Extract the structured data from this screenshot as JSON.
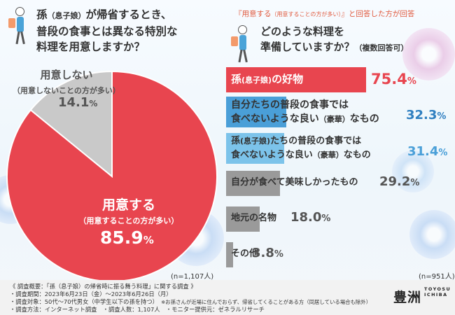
{
  "left": {
    "question_line1_a": "孫",
    "question_line1_b": "（息子娘）",
    "question_line1_c": "が帰省するとき、",
    "question_line2": "普段の食事とは異なる特別な",
    "question_line3": "料理を用意しますか？",
    "no_label": "用意しない",
    "no_sub": "（用意しないことの方が多い）",
    "no_value": "14.1",
    "yes_label": "用意する",
    "yes_sub": "（用意することの方が多い）",
    "yes_value": "85.9",
    "percent_sign": "%",
    "n": "(n=1,107人)",
    "colors": {
      "yes": "#e8454f",
      "no": "#c9c9c9"
    }
  },
  "right": {
    "note_a": "『用意する",
    "note_b": "（用意することの方が多い）",
    "note_c": "』と回答した方が回答",
    "question_line1": "どのような料理を",
    "question_line2a": "準備していますか？",
    "question_line2b": "（複数回答可）",
    "n": "(n=951人)"
  },
  "bars": [
    {
      "line1a": "孫",
      "line1b": "(息子娘)",
      "line1c": "の好物",
      "line2a": "",
      "line2b": "",
      "line2c": "",
      "value": "75.4"
    },
    {
      "line1a": "自分たちの普段の食事では",
      "line1b": "",
      "line1c": "",
      "line2a": "食べないような良い",
      "line2b": "（豪華）",
      "line2c": "なもの",
      "value": "32.3"
    },
    {
      "line1a": "孫",
      "line1b": "(息子娘)",
      "line1c": "たちの普段の食事では",
      "line2a": "食べないような良い",
      "line2b": "（豪華）",
      "line2c": "なもの",
      "value": "31.4"
    },
    {
      "line1a": "自分が食べて美味しかったもの",
      "line1b": "",
      "line1c": "",
      "line2a": "",
      "line2b": "",
      "line2c": "",
      "value": "29.2"
    },
    {
      "line1a": "地元の名物",
      "line1b": "",
      "line1c": "",
      "line2a": "",
      "line2b": "",
      "line2c": "",
      "value": "18.0"
    },
    {
      "line1a": "その他",
      "line1b": "",
      "line1c": "",
      "line2a": "",
      "line2b": "",
      "line2c": "",
      "value": "3.8"
    }
  ],
  "bar_colors": [
    "#e8454f",
    "#4a9fd8",
    "#7cc3ea",
    "#9a9a9a",
    "#9a9a9a",
    "#9a9a9a"
  ],
  "footer": {
    "line1": "《 調査概要：「孫（息子娘）の帰省時に振る舞う料理」に関する調査 》",
    "line2": "・調査期間：2023年6月23日（金）〜2023年6月26日（月）",
    "line3a": "・調査対象：50代〜70代男女（中学生以下の孫を持つ）",
    "line3b": "※お孫さんが近場に住んでおらず、帰省してくることがある方（同居している場合も除外）",
    "line4": "・調査方法：インターネット調査　・調査人数：1,107人　・モニター提供元：ゼネラルリサーチ",
    "logo_kanji": "豊洲",
    "logo_roman_1": "TOYOSU",
    "logo_roman_2": "ICHIBA"
  },
  "chart_data": [
    {
      "type": "pie",
      "title": "孫（息子娘）が帰省するとき、普段の食事とは異なる特別な料理を用意しますか？",
      "categories": [
        "用意する（用意することの方が多い）",
        "用意しない（用意しないことの方が多い）"
      ],
      "values": [
        85.9,
        14.1
      ],
      "unit": "%",
      "n": "n=1,107人",
      "colors": [
        "#e8454f",
        "#c9c9c9"
      ]
    },
    {
      "type": "bar",
      "orientation": "horizontal",
      "title": "どのような料理を準備していますか？（複数回答可）",
      "categories": [
        "孫(息子娘)の好物",
        "自分たちの普段の食事では食べないような良い（豪華）なもの",
        "孫(息子娘)たちの普段の食事では食べないような良い（豪華）なもの",
        "自分が食べて美味しかったもの",
        "地元の名物",
        "その他"
      ],
      "values": [
        75.4,
        32.3,
        31.4,
        29.2,
        18.0,
        3.8
      ],
      "unit": "%",
      "n": "n=951人",
      "colors": [
        "#e8454f",
        "#4a9fd8",
        "#7cc3ea",
        "#9a9a9a",
        "#9a9a9a",
        "#9a9a9a"
      ]
    }
  ]
}
